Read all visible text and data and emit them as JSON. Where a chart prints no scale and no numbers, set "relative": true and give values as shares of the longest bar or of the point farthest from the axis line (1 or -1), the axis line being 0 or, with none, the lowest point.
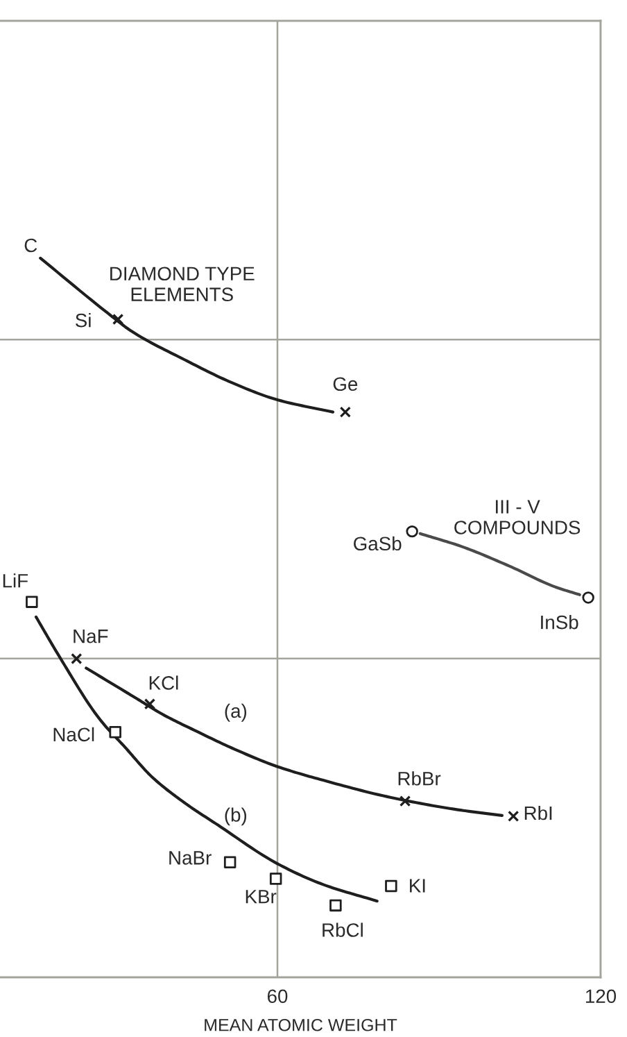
{
  "chart_data": {
    "type": "line",
    "xlabel": "MEAN ATOMIC WEIGHT",
    "xlim": [
      8.5,
      120
    ],
    "xticks": [
      60,
      120
    ],
    "relative": true,
    "grid": true,
    "series": [
      {
        "color": "#1e1e1e",
        "x": [
          16.0,
          28.6,
          33.0,
          42.7,
          51.5,
          60.0,
          70.3
        ],
        "values": [
          1.0,
          0.923,
          0.898,
          0.859,
          0.827,
          0.803,
          0.786
        ]
      },
      {
        "type": "scatter",
        "marker": "cross",
        "color": "#1e1e1e",
        "x": [
          30.4,
          72.6
        ],
        "values": [
          0.915,
          0.786
        ]
      },
      {
        "color": "#4a4a4a",
        "x": [
          86.5,
          94.2,
          103.0,
          111.5,
          116.1
        ],
        "values": [
          0.617,
          0.599,
          0.572,
          0.543,
          0.532
        ]
      },
      {
        "type": "scatter",
        "marker": "circle",
        "color": "#1e1e1e",
        "x": [
          85.0,
          117.7
        ],
        "values": [
          0.62,
          0.528
        ]
      },
      {
        "color": "#1e1e1e",
        "x": [
          24.5,
          34.0,
          38.6,
          45.3,
          51.5,
          60.0,
          68.5,
          81.1,
          93.5,
          101.7
        ],
        "values": [
          0.43,
          0.387,
          0.366,
          0.341,
          0.319,
          0.293,
          0.274,
          0.25,
          0.233,
          0.225
        ]
      },
      {
        "type": "scatter",
        "marker": "cross",
        "color": "#1e1e1e",
        "x": [
          22.7,
          36.3,
          83.7,
          103.8
        ],
        "values": [
          0.443,
          0.38,
          0.245,
          0.224
        ]
      },
      {
        "color": "#1e1e1e",
        "x": [
          15.2,
          19.6,
          27.0,
          31.7,
          36.8,
          42.7,
          48.9,
          60.0,
          68.5,
          78.5
        ],
        "values": [
          0.501,
          0.445,
          0.359,
          0.32,
          0.278,
          0.243,
          0.212,
          0.158,
          0.129,
          0.106
        ]
      },
      {
        "type": "scatter",
        "marker": "square",
        "color": "#1e1e1e",
        "x": [
          14.4,
          29.9,
          51.2,
          59.7,
          70.8,
          81.1
        ],
        "values": [
          0.522,
          0.341,
          0.16,
          0.137,
          0.1,
          0.127
        ]
      }
    ],
    "annotations": [
      {
        "text": "C",
        "x": 16.0,
        "y": 1.0
      },
      {
        "text": "Si",
        "x": 30.4,
        "y": 0.915
      },
      {
        "text": "DIAMOND TYPE\nELEMENTS",
        "x": 33.0,
        "y": 0.898
      },
      {
        "text": "Ge",
        "x": 72.6,
        "y": 0.786
      },
      {
        "text": "GaSb",
        "x": 85.0,
        "y": 0.62
      },
      {
        "text": "III - V\nCOMPOUNDS",
        "x": 94.2,
        "y": 0.599
      },
      {
        "text": "InSb",
        "x": 117.7,
        "y": 0.528
      },
      {
        "text": "LiF",
        "x": 14.4,
        "y": 0.522
      },
      {
        "text": "NaF",
        "x": 22.7,
        "y": 0.443
      },
      {
        "text": "KCl",
        "x": 36.3,
        "y": 0.38
      },
      {
        "text": "NaCl",
        "x": 29.9,
        "y": 0.341
      },
      {
        "text": "(a)",
        "x": 45.3,
        "y": 0.341
      },
      {
        "text": "RbBr",
        "x": 83.7,
        "y": 0.245
      },
      {
        "text": "RbI",
        "x": 103.8,
        "y": 0.224
      },
      {
        "text": "(b)",
        "x": 48.9,
        "y": 0.212
      },
      {
        "text": "NaBr",
        "x": 51.2,
        "y": 0.16
      },
      {
        "text": "KBr",
        "x": 59.7,
        "y": 0.137
      },
      {
        "text": "RbCl",
        "x": 70.8,
        "y": 0.1
      },
      {
        "text": "KI",
        "x": 81.1,
        "y": 0.127
      }
    ]
  }
}
